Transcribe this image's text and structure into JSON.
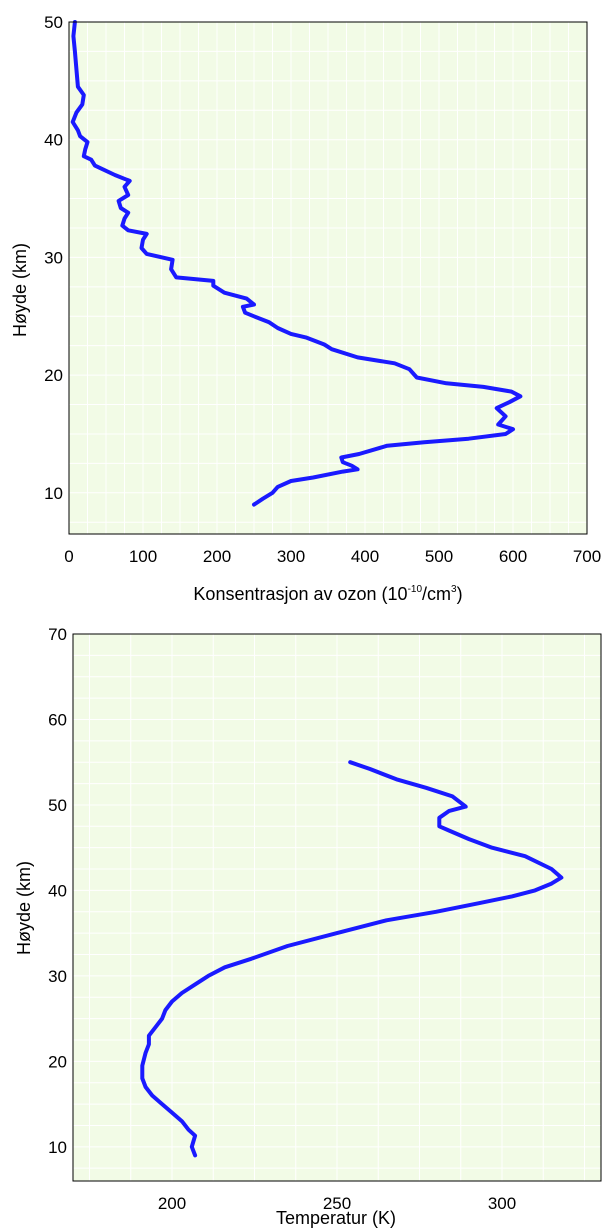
{
  "chart_data": [
    {
      "type": "line",
      "title": "",
      "xlabel": "Konsentrasjon av ozon (10",
      "xlabel_sup": "-10",
      "xlabel_mid": "/cm",
      "xlabel_sup2": "3",
      "xlabel_end": ")",
      "ylabel": "Høyde (km)",
      "xlim": [
        0,
        700
      ],
      "ylim": [
        6.5,
        50
      ],
      "xticks": [
        0,
        100,
        200,
        300,
        400,
        500,
        600,
        700
      ],
      "yticks": [
        10,
        20,
        30,
        40,
        50
      ],
      "grid": true,
      "background_color": "#f2fbe6",
      "line_color": "#1a1aff",
      "series": [
        {
          "x": [
            250,
            262,
            275,
            282,
            300,
            330,
            370,
            390,
            382,
            370,
            368,
            392,
            430,
            480,
            540,
            590,
            600,
            580,
            590,
            578,
            595,
            610,
            598,
            560,
            510,
            470,
            460,
            440,
            390,
            355,
            345,
            320,
            300,
            282,
            270,
            250,
            238,
            235,
            250,
            240,
            210,
            195,
            195,
            145,
            138,
            140,
            105,
            98,
            100,
            105,
            80,
            72,
            75,
            80,
            70,
            67,
            80,
            75,
            82,
            62,
            45,
            35,
            30,
            20,
            22,
            25,
            15,
            12,
            5,
            10,
            18,
            20,
            12,
            10,
            8,
            6,
            8
          ],
          "y": [
            9.0,
            9.5,
            10.0,
            10.5,
            11.0,
            11.3,
            11.8,
            12.0,
            12.3,
            12.6,
            13.0,
            13.3,
            14.0,
            14.3,
            14.6,
            15.0,
            15.4,
            15.8,
            16.5,
            17.2,
            17.7,
            18.2,
            18.6,
            19.0,
            19.3,
            19.8,
            20.5,
            21.0,
            21.5,
            22.2,
            22.6,
            23.2,
            23.5,
            24.0,
            24.5,
            25.0,
            25.3,
            25.8,
            26.0,
            26.5,
            27.0,
            27.6,
            28.0,
            28.3,
            29.0,
            29.8,
            30.3,
            30.8,
            31.5,
            32.0,
            32.3,
            32.7,
            33.3,
            33.8,
            34.2,
            34.8,
            35.3,
            36.0,
            36.5,
            37.0,
            37.5,
            37.8,
            38.3,
            38.6,
            39.2,
            39.8,
            40.3,
            40.8,
            41.5,
            42.3,
            43.0,
            43.8,
            44.5,
            46.0,
            47.5,
            48.8,
            50.0
          ]
        }
      ]
    },
    {
      "type": "line",
      "title": "",
      "xlabel": "Temperatur (K)",
      "ylabel": "Høyde (km)",
      "xlim": [
        170,
        330
      ],
      "ylim": [
        6,
        70
      ],
      "xticks": [
        200,
        250,
        300
      ],
      "yticks": [
        10,
        20,
        30,
        40,
        50,
        60,
        70
      ],
      "grid": true,
      "background_color": "#f2fbe6",
      "line_color": "#1a1aff",
      "series": [
        {
          "x": [
            207,
            206,
            207,
            205,
            203,
            200,
            197,
            194,
            192,
            191,
            191,
            192,
            193,
            193,
            195,
            197,
            198,
            200,
            203,
            207,
            211,
            216,
            224,
            235,
            250,
            265,
            280,
            293,
            303,
            310,
            315,
            318,
            315,
            307,
            297,
            290,
            284,
            281,
            281,
            284,
            289,
            285,
            277,
            268,
            260,
            254
          ],
          "y": [
            9.0,
            10.0,
            11.3,
            12.0,
            13.0,
            14.0,
            15.0,
            16.0,
            17.0,
            18.0,
            19.5,
            21.0,
            22.0,
            23.0,
            24.0,
            25.0,
            26.0,
            27.0,
            28.0,
            29.0,
            30.0,
            31.0,
            32.0,
            33.5,
            35.0,
            36.5,
            37.5,
            38.5,
            39.3,
            40.0,
            40.8,
            41.5,
            42.5,
            44.0,
            45.0,
            46.0,
            47.0,
            47.5,
            48.5,
            49.3,
            49.8,
            51.0,
            52.0,
            53.0,
            54.2,
            55.0
          ]
        }
      ]
    }
  ]
}
